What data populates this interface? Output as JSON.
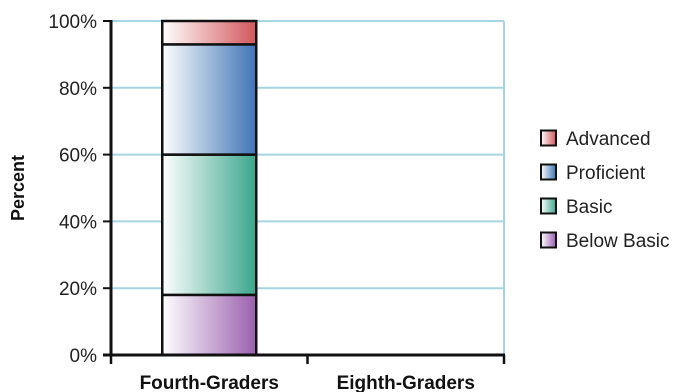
{
  "chart_data": {
    "type": "bar",
    "stacked": true,
    "ylabel": "Percent",
    "ylim": [
      0,
      100
    ],
    "yticks": [
      "0%",
      "20%",
      "40%",
      "60%",
      "80%",
      "100%"
    ],
    "categories": [
      "Fourth-Graders",
      "Eighth-Graders"
    ],
    "series": [
      {
        "name": "Below Basic",
        "values": [
          18,
          null
        ],
        "color": "#9a5fae"
      },
      {
        "name": "Basic",
        "values": [
          42,
          null
        ],
        "color": "#3aa68c"
      },
      {
        "name": "Proficient",
        "values": [
          33,
          null
        ],
        "color": "#3f74b6"
      },
      {
        "name": "Advanced",
        "values": [
          7,
          null
        ],
        "color": "#d2575b"
      }
    ],
    "legend_order": [
      "Advanced",
      "Proficient",
      "Basic",
      "Below Basic"
    ],
    "grid": true,
    "grid_color": "#a8d4e4",
    "legend_position": "right"
  }
}
